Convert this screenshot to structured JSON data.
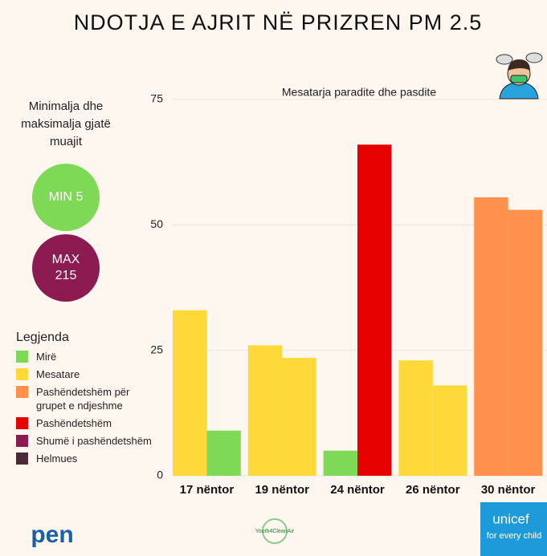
{
  "chart_data": {
    "type": "bar",
    "title": "NDOTJA E AJRIT NË PRIZREN PM 2.5",
    "subtitle": "Mesatarja paradite dhe pasdite",
    "categories": [
      "17 nëntor",
      "19 nëntor",
      "24 nëntor",
      "26 nëntor",
      "30 nëntor"
    ],
    "series": [
      {
        "values": [
          33,
          26,
          5,
          23,
          55.5
        ],
        "colors": [
          "#ffd83a",
          "#ffd83a",
          "#7ed957",
          "#ffd83a",
          "#ff914d"
        ]
      },
      {
        "values": [
          9,
          23.5,
          66,
          18,
          53
        ],
        "colors": [
          "#7ed957",
          "#ffd83a",
          "#e60000",
          "#ffd83a",
          "#ff914d"
        ]
      }
    ],
    "ylim": [
      0,
      75
    ],
    "yticks": [
      0,
      25,
      50,
      75
    ],
    "grid": true
  },
  "extremes": {
    "title": "Minimalja dhe maksimalja gjatë muajit",
    "min": {
      "label": "MIN",
      "value": 5,
      "color": "#7ed957"
    },
    "max": {
      "label": "MAX",
      "value": 215,
      "color": "#8c1b52"
    }
  },
  "legend": {
    "title": "Legjenda",
    "items": [
      {
        "label": "Mirë",
        "color": "#7ed957"
      },
      {
        "label": "Mesatare",
        "color": "#ffd83a"
      },
      {
        "label": "Pashëndetshëm për grupet e ndjeshme",
        "color": "#ff914d"
      },
      {
        "label": "Pashëndetshëm",
        "color": "#e60000"
      },
      {
        "label": "Shumë i pashëndetshëm",
        "color": "#8c1b52"
      },
      {
        "label": "Helmues",
        "color": "#4b2a36"
      }
    ]
  },
  "logos": {
    "pen": "pen",
    "youth": "Youth4CleanAir",
    "unicef": "unicef",
    "unicef_tagline": "for every child"
  }
}
